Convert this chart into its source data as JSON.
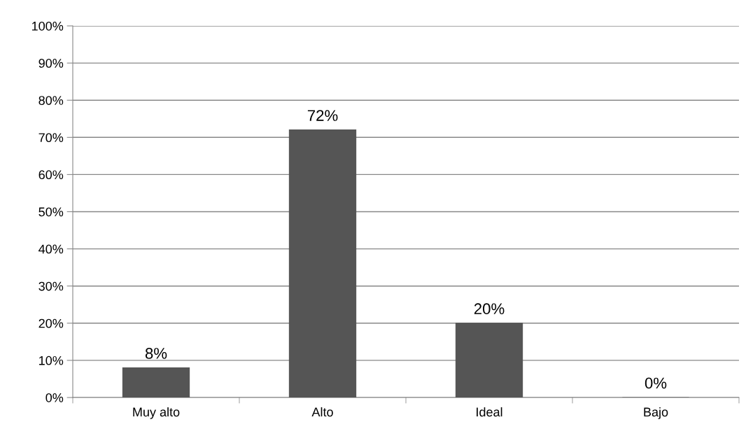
{
  "chart_data": {
    "type": "bar",
    "categories": [
      "Muy alto",
      "Alto",
      "Ideal",
      "Bajo"
    ],
    "values": [
      8,
      72,
      20,
      0
    ],
    "value_labels": [
      "8%",
      "72%",
      "20%",
      "0%"
    ],
    "color": "#555555",
    "ylim": [
      0,
      100
    ],
    "yticks": [
      {
        "value": 0,
        "label": "0%"
      },
      {
        "value": 10,
        "label": "10%"
      },
      {
        "value": 20,
        "label": "20%"
      },
      {
        "value": 30,
        "label": "30%"
      },
      {
        "value": 40,
        "label": "40%"
      },
      {
        "value": 50,
        "label": "50%"
      },
      {
        "value": 60,
        "label": "60%"
      },
      {
        "value": 70,
        "label": "70%"
      },
      {
        "value": 80,
        "label": "80%"
      },
      {
        "value": 90,
        "label": "90%"
      },
      {
        "value": 100,
        "label": "100%"
      }
    ],
    "grid": "y",
    "legend": false
  }
}
